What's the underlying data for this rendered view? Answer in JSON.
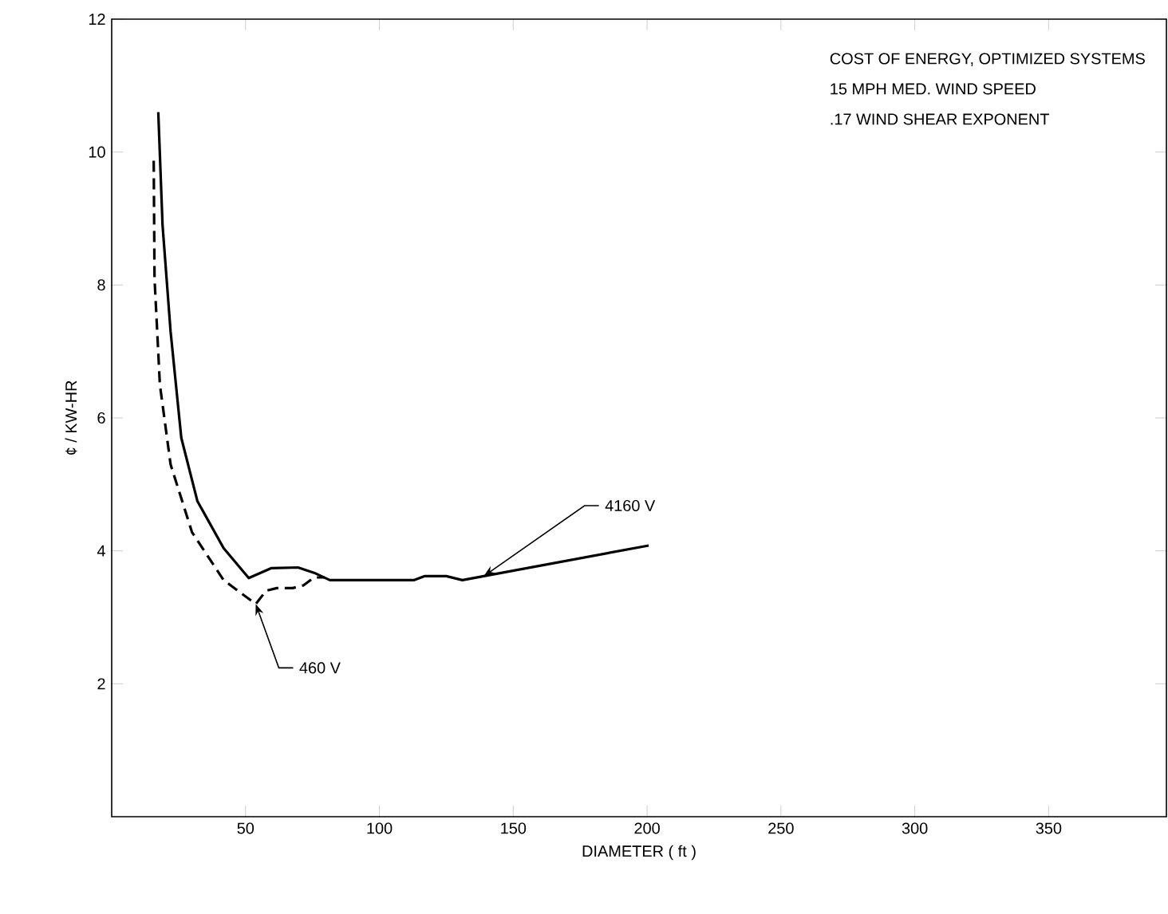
{
  "chart_data": {
    "type": "line",
    "xlabel": "DIAMETER ( ft )",
    "ylabel": "¢ / KW-HR",
    "xlim": [
      0,
      394
    ],
    "ylim": [
      0,
      12
    ],
    "xticks": [
      50,
      100,
      150,
      200,
      250,
      300,
      350
    ],
    "yticks": [
      2,
      4,
      6,
      8,
      10,
      12
    ],
    "series": [
      {
        "color": "#000000",
        "line_style": "solid",
        "x": [
          17.4,
          19,
          22,
          26,
          32,
          41.8,
          51.2,
          59.7,
          69.6,
          75.6,
          81.5,
          113,
          117,
          125,
          131,
          139,
          200.6
        ],
        "values": [
          10.6,
          8.9,
          7.3,
          5.7,
          4.75,
          4.04,
          3.59,
          3.74,
          3.75,
          3.67,
          3.56,
          3.56,
          3.62,
          3.62,
          3.56,
          3.62,
          4.08
        ]
      },
      {
        "color": "#000000",
        "line_style": "dashed",
        "x": [
          15.7,
          16,
          18,
          22,
          30,
          41.8,
          53.8,
          57.7,
          61.7,
          67.6,
          71.6,
          75.6,
          79.5
        ],
        "values": [
          9.87,
          8.1,
          6.5,
          5.3,
          4.28,
          3.56,
          3.2,
          3.4,
          3.44,
          3.44,
          3.48,
          3.6,
          3.6
        ]
      }
    ],
    "annotations": [
      "COST OF ENERGY, OPTIMIZED SYSTEMS",
      "15 MPH MED. WIND SPEED",
      ".17 WIND SHEAR EXPONENT",
      {
        "text": "4160 V",
        "x": 139,
        "y": 3.62
      },
      {
        "text": "460 V",
        "x": 53.8,
        "y": 3.2
      }
    ]
  }
}
